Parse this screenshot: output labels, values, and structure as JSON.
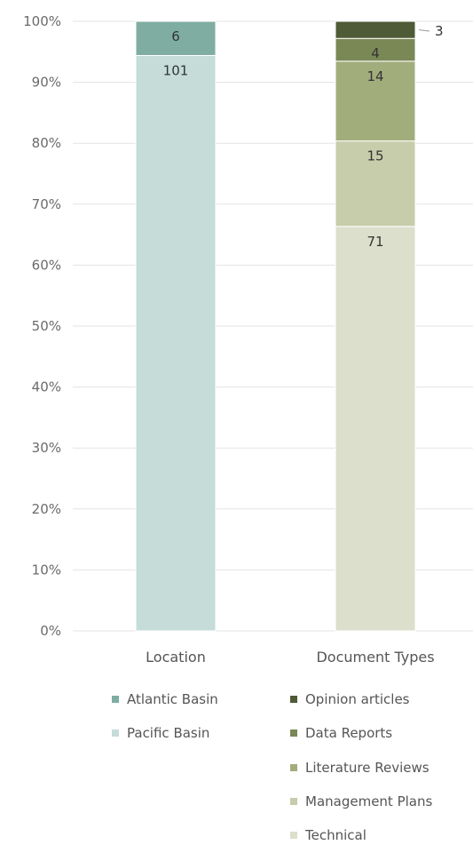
{
  "chart_data": {
    "type": "bar",
    "stacked": true,
    "percent": true,
    "categories": [
      "Location",
      "Document Types"
    ],
    "y_ticks": [
      "0%",
      "10%",
      "20%",
      "30%",
      "40%",
      "50%",
      "60%",
      "70%",
      "80%",
      "90%",
      "100%"
    ],
    "ylim": [
      0,
      100
    ],
    "grid": true,
    "legend_placement": "bottom",
    "series": [
      {
        "name": "Pacific Basin",
        "category": "Location",
        "value": 101,
        "label": "101",
        "color": "#c5dcd8"
      },
      {
        "name": "Atlantic Basin",
        "category": "Location",
        "value": 6,
        "label": "6",
        "color": "#7fada2"
      },
      {
        "name": "Technical",
        "category": "Document Types",
        "value": 71,
        "label": "71",
        "color": "#dcdfcb"
      },
      {
        "name": "Management Plans",
        "category": "Document Types",
        "value": 15,
        "label": "15",
        "color": "#c7ccaa"
      },
      {
        "name": "Literature Reviews",
        "category": "Document Types",
        "value": 14,
        "label": "14",
        "color": "#a2ad7c"
      },
      {
        "name": "Data Reports",
        "category": "Document Types",
        "value": 4,
        "label": "4",
        "color": "#7a8856"
      },
      {
        "name": "Opinion articles",
        "category": "Document Types",
        "value": 3,
        "label": "3",
        "color": "#4f5a37"
      }
    ]
  },
  "legend": {
    "left": [
      {
        "name": "Atlantic Basin",
        "color": "#7fada2"
      },
      {
        "name": "Pacific Basin",
        "color": "#c5dcd8"
      }
    ],
    "right": [
      {
        "name": "Opinion articles",
        "color": "#4f5a37"
      },
      {
        "name": "Data Reports",
        "color": "#7a8856"
      },
      {
        "name": "Literature Reviews",
        "color": "#a2ad7c"
      },
      {
        "name": "Management Plans",
        "color": "#c7ccaa"
      },
      {
        "name": "Technical",
        "color": "#dcdfcb"
      }
    ]
  }
}
